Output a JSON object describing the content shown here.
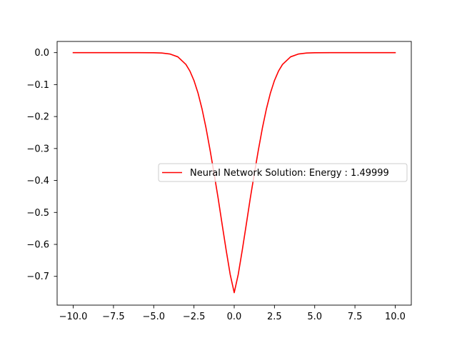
{
  "chart_data": {
    "type": "line",
    "title": "",
    "xlabel": "",
    "ylabel": "",
    "xlim": [
      -11,
      11
    ],
    "ylim": [
      -0.79,
      0.035
    ],
    "grid": false,
    "legend_placement": "center-right",
    "x_ticks": [
      -10,
      -7.5,
      -5,
      -2.5,
      0,
      2.5,
      5,
      7.5,
      10
    ],
    "x_tick_labels": [
      "−10.0",
      "−7.5",
      "−5.0",
      "−2.5",
      "0.0",
      "2.5",
      "5.0",
      "7.5",
      "10.0"
    ],
    "y_ticks": [
      0,
      -0.1,
      -0.2,
      -0.3,
      -0.4,
      -0.5,
      -0.6,
      -0.7
    ],
    "y_tick_labels": [
      "0.0",
      "−0.1",
      "−0.2",
      "−0.3",
      "−0.4",
      "−0.5",
      "−0.6",
      "−0.7"
    ],
    "series": [
      {
        "name": "Neural Network Solution: Energy : 1.49999",
        "color": "#ff0000",
        "x": [
          -10,
          -6,
          -5,
          -4.5,
          -4,
          -3.5,
          -3,
          -2.75,
          -2.5,
          -2.25,
          -2,
          -1.75,
          -1.5,
          -1.25,
          -1,
          -0.75,
          -0.5,
          -0.25,
          0,
          0.25,
          0.5,
          0.75,
          1,
          1.25,
          1.5,
          1.75,
          2,
          2.25,
          2.5,
          2.75,
          3,
          3.5,
          4,
          4.5,
          5,
          6,
          10
        ],
        "y": [
          0,
          0,
          -0.0003,
          -0.0012,
          -0.0042,
          -0.0132,
          -0.037,
          -0.0578,
          -0.0872,
          -0.1262,
          -0.176,
          -0.236,
          -0.3048,
          -0.3785,
          -0.4549,
          -0.5374,
          -0.6181,
          -0.6939,
          -0.751,
          -0.6939,
          -0.6181,
          -0.5374,
          -0.4549,
          -0.3785,
          -0.3048,
          -0.236,
          -0.176,
          -0.1262,
          -0.0872,
          -0.0578,
          -0.037,
          -0.0132,
          -0.0042,
          -0.0012,
          -0.0003,
          0,
          0
        ]
      }
    ]
  }
}
